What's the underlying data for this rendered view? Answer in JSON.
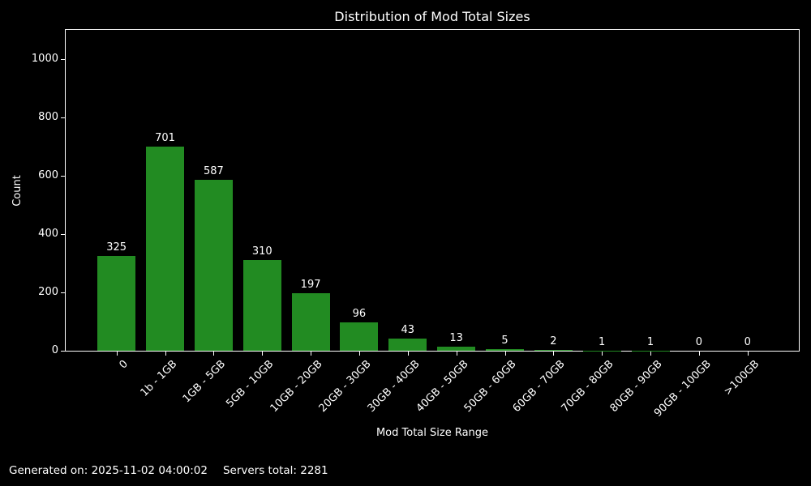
{
  "title": "Distribution of Mod Total Sizes",
  "footer": {
    "generated": "Generated on: 2025-11-02 04:00:02",
    "servers": "Servers total: 2281"
  },
  "chart_data": {
    "type": "bar",
    "title": "Distribution of Mod Total Sizes",
    "xlabel": "Mod Total Size Range",
    "ylabel": "Count",
    "categories": [
      "0",
      "1b - 1GB",
      "1GB - 5GB",
      "5GB - 10GB",
      "10GB - 20GB",
      "20GB - 30GB",
      "30GB - 40GB",
      "40GB - 50GB",
      "50GB - 60GB",
      "60GB - 70GB",
      "70GB - 80GB",
      "80GB - 90GB",
      "90GB - 100GB",
      ">100GB"
    ],
    "values": [
      325,
      701,
      587,
      310,
      197,
      96,
      43,
      13,
      5,
      2,
      1,
      1,
      0,
      0
    ],
    "yticks": [
      0,
      200,
      400,
      600,
      800,
      1000
    ],
    "ylim": [
      0,
      1100
    ],
    "grid": false,
    "legend_position": "none",
    "bar_value_labels": true,
    "bar_color": "#228B22",
    "background_color": "#000000",
    "text_color": "#ffffff",
    "spine_color": "#ffffff"
  }
}
